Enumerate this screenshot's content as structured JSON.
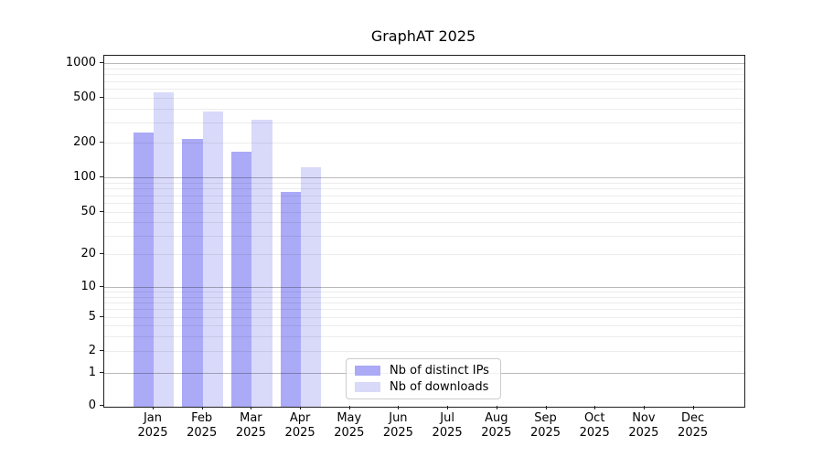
{
  "title": "GraphAT 2025",
  "colors": {
    "bar_distinct_ips": "#aaaaf7",
    "bar_downloads": "#d9d9fa",
    "axis": "#1f1f1f"
  },
  "legend": {
    "items": [
      {
        "label": "Nb of distinct IPs",
        "series": "distinct_ips"
      },
      {
        "label": "Nb of downloads",
        "series": "downloads"
      }
    ]
  },
  "x_axis": {
    "months": [
      "Jan",
      "Feb",
      "Mar",
      "Apr",
      "May",
      "Jun",
      "Jul",
      "Aug",
      "Sep",
      "Oct",
      "Nov",
      "Dec"
    ],
    "year": "2025"
  },
  "chart_data": {
    "type": "bar",
    "title": "GraphAT 2025",
    "categories": [
      "Jan 2025",
      "Feb 2025",
      "Mar 2025",
      "Apr 2025",
      "May 2025",
      "Jun 2025",
      "Jul 2025",
      "Aug 2025",
      "Sep 2025",
      "Oct 2025",
      "Nov 2025",
      "Dec 2025"
    ],
    "series": [
      {
        "name": "Nb of distinct IPs",
        "color": "#aaaaf7",
        "values": [
          250,
          220,
          170,
          76,
          null,
          null,
          null,
          null,
          null,
          null,
          null,
          null
        ]
      },
      {
        "name": "Nb of downloads",
        "color": "#d9d9fa",
        "values": [
          565,
          385,
          325,
          124,
          null,
          null,
          null,
          null,
          null,
          null,
          null,
          null
        ]
      }
    ],
    "xlabel": "",
    "ylabel": "",
    "yscale": "symlog",
    "y_ticks": [
      0,
      1,
      2,
      5,
      10,
      20,
      50,
      100,
      200,
      500,
      1000
    ],
    "ylim": [
      0,
      1100
    ],
    "grid": "on",
    "legend_position": "lower center inside"
  }
}
